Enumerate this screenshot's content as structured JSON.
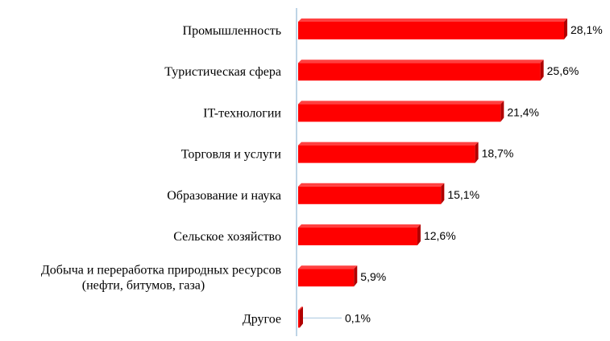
{
  "chart_data": {
    "type": "bar",
    "orientation": "horizontal",
    "categories": [
      [
        "Промышленность"
      ],
      [
        "Туристическая сфера"
      ],
      [
        "IT-технологии"
      ],
      [
        "Торговля и услуги"
      ],
      [
        "Образование и наука"
      ],
      [
        "Сельское хозяйство"
      ],
      [
        "Добыча и переработка природных ресурсов",
        "(нефти, битумов, газа)"
      ],
      [
        "Другое"
      ]
    ],
    "values": [
      28.1,
      25.6,
      21.4,
      18.7,
      15.1,
      12.6,
      5.9,
      0.1
    ],
    "data_labels": [
      "28,1%",
      "25,6%",
      "21,4%",
      "18,7%",
      "15,1%",
      "12,6%",
      "5,9%",
      "0,1%"
    ],
    "xlim": [
      0,
      28.1
    ],
    "grid": false,
    "legend": "none",
    "bar_color": "#ff0000",
    "bar_side_color": "#b00000",
    "axis_color": "#a8c6de"
  }
}
